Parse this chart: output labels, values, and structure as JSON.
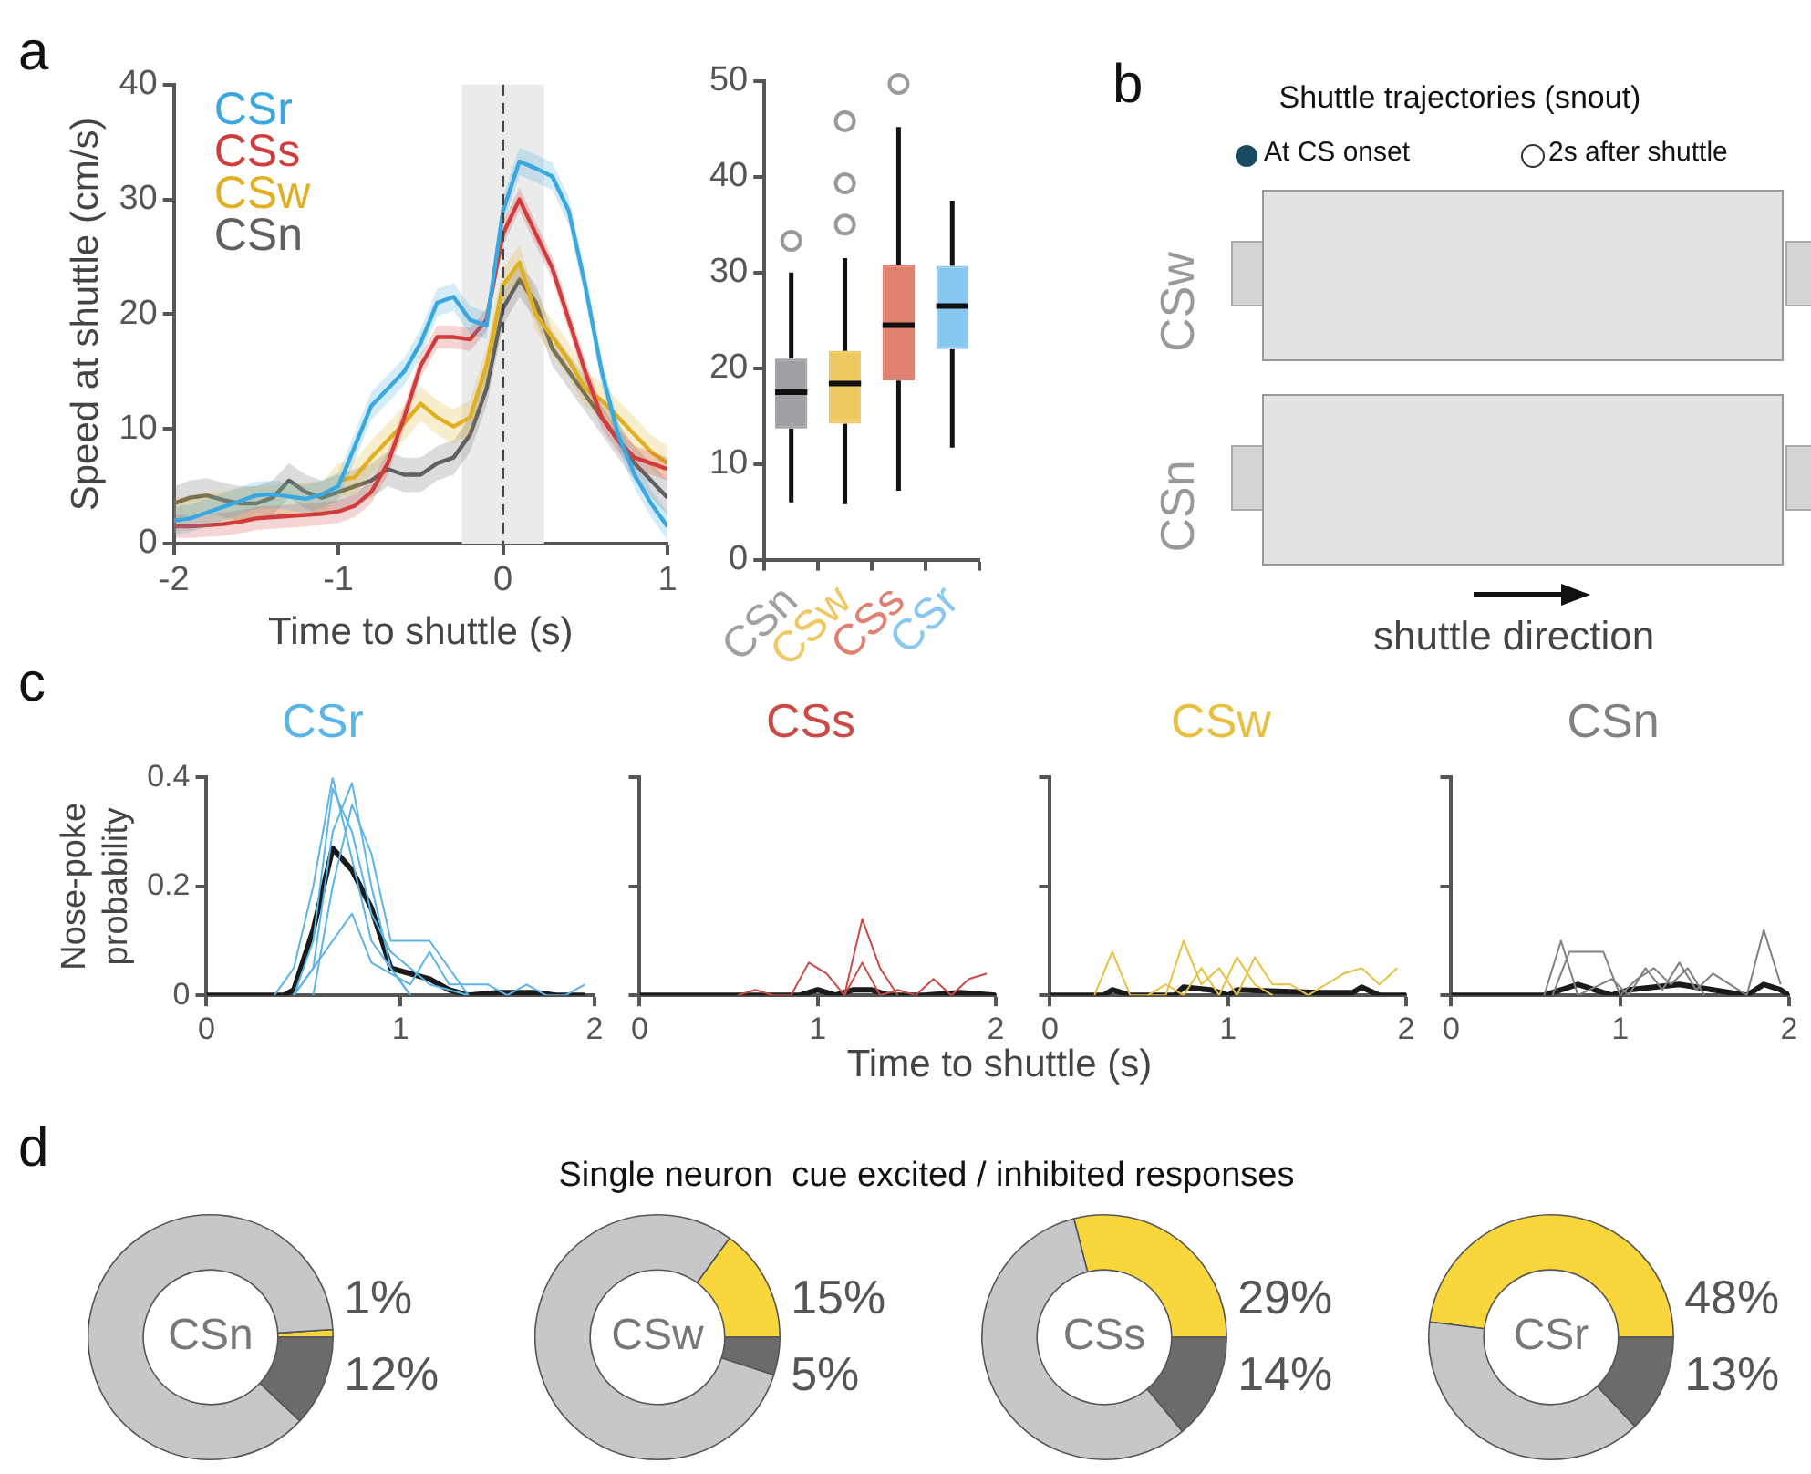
{
  "chart_data": [
    {
      "type": "line",
      "xlabel": "Time to shuttle (s)",
      "ylabel": "Speed at shuttle (cm/s)",
      "annotations": [
        "a"
      ],
      "legend": "top left",
      "x": [
        -2,
        -1.9,
        -1.8,
        -1.7,
        -1.6,
        -1.5,
        -1.4,
        -1.3,
        -1.2,
        -1.1,
        -1,
        -0.9,
        -0.8,
        -0.7,
        -0.6,
        -0.5,
        -0.4,
        -0.3,
        -0.2,
        -0.1,
        0,
        0.1,
        0.2,
        0.3,
        0.4,
        0.5,
        0.6,
        0.7,
        0.8,
        0.9,
        1
      ],
      "series": [
        {
          "name": "CSr",
          "color": "#3aa8e0",
          "values": [
            2,
            2.2,
            2.7,
            3.2,
            3.7,
            4.2,
            4.3,
            4.1,
            3.9,
            4.3,
            5,
            8.5,
            12,
            13.5,
            15,
            17.5,
            21,
            21.5,
            19.5,
            19,
            29,
            33.3,
            32.7,
            32,
            29,
            22.5,
            15,
            9.5,
            6,
            3.5,
            1.5
          ],
          "lower": [
            0.8,
            1,
            1.5,
            2,
            2.5,
            3,
            3.1,
            2.9,
            2.7,
            3.1,
            3.8,
            7.3,
            10.8,
            12.3,
            13.8,
            16.3,
            19.8,
            20.3,
            18.3,
            17.8,
            27.8,
            32.1,
            31.5,
            30.8,
            27.8,
            21.3,
            13.8,
            8.3,
            4.8,
            2.3,
            0.3
          ],
          "upper": [
            3.2,
            3.4,
            3.9,
            4.4,
            4.9,
            5.4,
            5.5,
            5.3,
            5.1,
            5.5,
            6.2,
            9.7,
            13.2,
            14.7,
            16.2,
            18.7,
            22.2,
            22.7,
            20.7,
            20.2,
            30.2,
            34.5,
            33.9,
            33.2,
            30.2,
            23.7,
            16.2,
            10.7,
            7.2,
            4.7,
            2.7
          ]
        },
        {
          "name": "CSs",
          "color": "#d23c3c",
          "values": [
            1.5,
            1.5,
            1.6,
            1.7,
            1.9,
            2.2,
            2.3,
            2.4,
            2.5,
            2.6,
            2.8,
            3.3,
            4.5,
            7,
            11,
            15.5,
            18,
            18,
            17.8,
            19.5,
            27,
            30,
            27,
            24,
            19.5,
            15,
            11,
            9,
            7.5,
            7,
            6.5
          ],
          "lower": [
            0.5,
            0.5,
            0.6,
            0.7,
            0.9,
            1.2,
            1.3,
            1.4,
            1.5,
            1.6,
            1.8,
            2.3,
            3.5,
            6,
            10,
            14.5,
            17,
            17,
            16.8,
            18.5,
            26,
            29,
            26,
            23,
            18.5,
            14,
            10,
            8,
            6.5,
            6,
            5.5
          ],
          "upper": [
            2.5,
            2.5,
            2.6,
            2.7,
            2.9,
            3.2,
            3.3,
            3.4,
            3.5,
            3.6,
            3.8,
            4.3,
            5.5,
            8,
            12,
            16.5,
            19,
            19,
            18.8,
            20.5,
            28,
            31,
            28,
            25,
            20.5,
            16,
            12,
            10,
            8.5,
            8,
            7.5
          ]
        },
        {
          "name": "CSw",
          "color": "#e0b020",
          "values": [
            null,
            null,
            null,
            null,
            null,
            null,
            null,
            null,
            null,
            null,
            5.5,
            5.8,
            7.5,
            9,
            10.5,
            12.2,
            11,
            10.2,
            11,
            15.5,
            22.5,
            24.5,
            20,
            18,
            16,
            13.5,
            12.5,
            11,
            9.5,
            8,
            7
          ],
          "lower": [
            1,
            1.2,
            1.4,
            1.6,
            1.8,
            2,
            2.1,
            2.2,
            2.3,
            2.4,
            4,
            4.3,
            6,
            7.5,
            9,
            10.7,
            9.5,
            8.7,
            9.5,
            14,
            21,
            23,
            18.5,
            16.5,
            14.5,
            12,
            11,
            9.5,
            8,
            6.5,
            5.5
          ],
          "upper": [
            4,
            4.2,
            4.4,
            4.6,
            4.8,
            5,
            5.1,
            5.2,
            5.3,
            5.4,
            7,
            7.3,
            9,
            10.5,
            12,
            13.7,
            12.5,
            11.7,
            12.5,
            17,
            24,
            26,
            21.5,
            19.5,
            17.5,
            15,
            14,
            12.5,
            11,
            9.5,
            8.5
          ]
        },
        {
          "name": "CSn",
          "color": "#606060",
          "values": [
            3.5,
            4,
            4.2,
            3.8,
            3.5,
            3.5,
            4,
            5.5,
            4.5,
            4,
            4.5,
            5,
            5.5,
            6.5,
            6,
            6,
            7,
            7.5,
            9.5,
            13.5,
            20.5,
            23,
            21,
            17,
            15,
            13,
            11,
            9,
            7,
            5.5,
            4
          ],
          "lower": [
            2,
            2.5,
            2.7,
            2.3,
            2,
            2,
            2.5,
            4,
            3,
            2.5,
            3,
            3.5,
            4,
            5,
            4.5,
            4.5,
            5.5,
            6,
            8,
            12,
            19,
            21.5,
            19.5,
            15.5,
            13.5,
            11.5,
            9.5,
            7.5,
            5.5,
            4,
            2.5
          ],
          "upper": [
            5,
            5.5,
            5.7,
            5.3,
            5,
            5,
            5.5,
            7,
            6,
            5.5,
            6,
            6.5,
            7,
            8,
            7.5,
            7.5,
            8.5,
            9,
            11,
            15,
            22,
            24.5,
            22.5,
            18.5,
            16.5,
            14.5,
            12.5,
            10.5,
            8.5,
            7,
            5.5
          ]
        }
      ],
      "xlim": [
        -2,
        1
      ],
      "xticks": [
        -2,
        -1,
        0,
        1
      ],
      "ylim": [
        0,
        40
      ],
      "yticks": [
        0,
        10,
        20,
        30,
        40
      ],
      "bands": [
        {
          "axis": "x",
          "from": -0.25,
          "to": 0.25,
          "color": "#ebebeb"
        }
      ],
      "ref_lines": [
        {
          "axis": "x",
          "value": 0,
          "color": "#444444",
          "line_style": "dashed"
        }
      ]
    },
    {
      "type": "box",
      "categories": [
        "CSn",
        "CSw",
        "CSs",
        "CSr"
      ],
      "colors": [
        "#a0a0a4",
        "#f0c860",
        "#e08070",
        "#88c8f0"
      ],
      "boxes": [
        {
          "low": 6,
          "q1": 13.7,
          "median": 17.5,
          "q3": 21,
          "high": 30,
          "outliers": [
            33.3
          ]
        },
        {
          "low": 5.8,
          "q1": 14.2,
          "median": 18.4,
          "q3": 21.8,
          "high": 31.5,
          "outliers": [
            35,
            39.3,
            45.8
          ]
        },
        {
          "low": 7.2,
          "q1": 18.7,
          "median": 24.5,
          "q3": 30.8,
          "high": 45.2,
          "outliers": [
            49.7
          ]
        },
        {
          "low": 11.7,
          "q1": 22,
          "median": 26.5,
          "q3": 30.7,
          "high": 37.5
        }
      ],
      "ylim": [
        0,
        50
      ],
      "yticks": [
        0,
        10,
        20,
        30,
        40,
        50
      ]
    },
    {
      "type": "other",
      "title": "Shuttle trajectories (snout)",
      "annotations": [
        "b",
        "At CS onset",
        "2s after shuttle",
        "CSw",
        "CSn",
        "shuttle direction"
      ]
    },
    {
      "type": "line",
      "title": "CSr",
      "ylabel": "Nose-poke probability",
      "annotations": [
        "c"
      ],
      "series": [
        {
          "color": "#5ab4e6",
          "x": [
            0.35,
            0.45,
            0.55,
            0.65,
            0.75,
            0.85,
            0.95,
            1.05
          ],
          "values": [
            0,
            0.05,
            0.2,
            0.4,
            0.25,
            0.1,
            0.05,
            0
          ]
        },
        {
          "color": "#5ab4e6",
          "x": [
            0.45,
            0.55,
            0.65,
            0.75,
            0.85,
            0.95,
            1.15,
            1.35
          ],
          "values": [
            0,
            0.1,
            0.38,
            0.3,
            0.15,
            0.08,
            0.02,
            0
          ]
        },
        {
          "color": "#5ab4e6",
          "x": [
            0.45,
            0.55,
            0.65,
            0.75,
            0.85,
            0.95,
            1.05
          ],
          "values": [
            0,
            0.05,
            0.3,
            0.39,
            0.2,
            0.05,
            0
          ]
        },
        {
          "color": "#5ab4e6",
          "x": [
            0.55,
            0.65,
            0.75,
            0.85,
            0.95,
            1.15,
            1.35
          ],
          "values": [
            0,
            0.2,
            0.35,
            0.26,
            0.1,
            0.1,
            0
          ]
        },
        {
          "color": "#5ab4e6",
          "x": [
            0.45,
            0.55,
            0.65,
            0.75,
            0.85,
            0.95,
            1.05,
            1.15,
            1.25,
            1.45,
            1.55,
            1.65,
            1.75,
            1.85,
            1.95
          ],
          "values": [
            0,
            0.05,
            0.1,
            0.15,
            0.06,
            0.04,
            0.02,
            0.08,
            0.02,
            0.02,
            0,
            0.02,
            0,
            0,
            0.02
          ]
        },
        {
          "color": "#1a1a1a",
          "x": [
            0,
            0.4,
            0.45,
            0.55,
            0.65,
            0.75,
            0.85,
            0.95,
            1.15,
            1.25,
            1.35,
            1.5,
            1.7,
            1.8,
            1.95
          ],
          "values": [
            0,
            0,
            0.01,
            0.12,
            0.27,
            0.23,
            0.16,
            0.05,
            0.03,
            0.01,
            0,
            0.005,
            0.005,
            0,
            0
          ]
        }
      ],
      "xlim": [
        0,
        2
      ],
      "xticks": [
        0,
        1,
        2
      ],
      "ylim": [
        0,
        0.4
      ],
      "yticks": [
        0,
        0.2,
        0.4
      ]
    },
    {
      "type": "line",
      "title": "CSs",
      "xlabel": "Time to shuttle (s)",
      "tick_labels": "x",
      "series": [
        {
          "color": "#cc4a44",
          "x": [
            0.55,
            0.65,
            0.75,
            0.85,
            0.95,
            1.05,
            1.15,
            1.25,
            1.35,
            1.45
          ],
          "values": [
            0,
            0.01,
            0,
            0,
            0.06,
            0.04,
            0,
            0.14,
            0.05,
            0
          ]
        },
        {
          "color": "#cc4a44",
          "x": [
            1.15,
            1.25,
            1.35,
            1.45,
            1.55,
            1.65,
            1.75,
            1.85,
            1.95
          ],
          "values": [
            0,
            0.06,
            0,
            0.01,
            0,
            0.03,
            0,
            0.03,
            0.04
          ]
        },
        {
          "color": "#1a1a1a",
          "x": [
            0,
            0.9,
            1,
            1.1,
            1.2,
            1.3,
            1.4,
            1.6,
            1.8,
            2
          ],
          "values": [
            0,
            0,
            0.01,
            0,
            0.01,
            0.01,
            0,
            0,
            0.005,
            0
          ]
        }
      ],
      "xlim": [
        0,
        2
      ],
      "xticks": [
        0,
        1,
        2
      ],
      "ylim": [
        0,
        0.4
      ],
      "yticks": [
        0,
        0.2,
        0.4
      ]
    },
    {
      "type": "line",
      "title": "CSw",
      "tick_labels": "x",
      "series": [
        {
          "color": "#e8c040",
          "x": [
            0.25,
            0.35,
            0.45,
            0.65,
            0.75,
            0.85,
            0.95,
            1.05,
            1.15,
            1.25,
            1.35,
            1.45,
            1.55,
            1.65,
            1.75,
            1.85,
            1.95
          ],
          "values": [
            0,
            0.08,
            0,
            0,
            0.1,
            0.02,
            0.05,
            0,
            0.07,
            0.02,
            0.02,
            0,
            0.02,
            0.04,
            0.05,
            0.02,
            0.05
          ]
        },
        {
          "color": "#e8c040",
          "x": [
            0.55,
            0.65,
            0.75,
            0.85,
            0.95,
            1.05,
            1.15,
            1.25
          ],
          "values": [
            0,
            0.02,
            0,
            0.05,
            0,
            0.07,
            0.02,
            0
          ]
        },
        {
          "color": "#1a1a1a",
          "x": [
            0,
            0.3,
            0.35,
            0.45,
            0.7,
            0.75,
            0.9,
            1,
            1.05,
            1.5,
            1.7,
            1.75,
            1.85,
            2
          ],
          "values": [
            0,
            0,
            0.01,
            0,
            0,
            0.015,
            0.01,
            0,
            0.01,
            0.005,
            0.005,
            0.015,
            0,
            0
          ]
        }
      ],
      "xlim": [
        0,
        2
      ],
      "xticks": [
        0,
        1,
        2
      ],
      "ylim": [
        0,
        0.4
      ],
      "yticks": [
        0,
        0.2,
        0.4
      ]
    },
    {
      "type": "line",
      "title": "CSn",
      "tick_labels": "x",
      "series": [
        {
          "color": "#808080",
          "x": [
            0.55,
            0.65,
            0.75,
            0.95,
            1.05,
            1.15,
            1.25,
            1.35,
            1.45,
            1.55,
            1.75,
            1.85,
            1.95
          ],
          "values": [
            0,
            0.1,
            0,
            0.03,
            0,
            0.05,
            0.01,
            0.06,
            0.01,
            0.04,
            0,
            0.12,
            0.02
          ]
        },
        {
          "color": "#808080",
          "x": [
            0.6,
            0.7,
            0.8,
            0.9,
            1,
            1.1,
            1.2,
            1.3,
            1.4,
            1.5
          ],
          "values": [
            0,
            0.08,
            0.08,
            0.08,
            0,
            0.03,
            0.05,
            0.02,
            0.05,
            0
          ]
        },
        {
          "color": "#1a1a1a",
          "x": [
            0,
            0.55,
            0.75,
            0.95,
            1.05,
            1.35,
            1.75,
            1.85,
            1.95,
            2
          ],
          "values": [
            0,
            0,
            0.02,
            0,
            0.01,
            0.02,
            0,
            0.02,
            0.01,
            0
          ]
        }
      ],
      "xlim": [
        0,
        2
      ],
      "xticks": [
        0,
        1,
        2
      ],
      "ylim": [
        0,
        0.4
      ],
      "yticks": [
        0,
        0.2,
        0.4
      ]
    },
    {
      "type": "donut",
      "title": "CSn",
      "annotations": [
        "d",
        "Single neuron  cue excited / inhibited responses"
      ],
      "categories": [
        null,
        null,
        null
      ],
      "values": [
        1,
        12,
        87
      ],
      "value_labels": [
        "1%",
        "12%",
        null
      ],
      "colors": [
        "#f8d63c",
        "#6b6b6b",
        "#c7c7c9"
      ]
    },
    {
      "type": "donut",
      "title": "CSw",
      "categories": [
        null,
        null,
        null
      ],
      "values": [
        15,
        5,
        80
      ],
      "value_labels": [
        "15%",
        "5%",
        null
      ],
      "colors": [
        "#f8d63c",
        "#6b6b6b",
        "#c7c7c9"
      ]
    },
    {
      "type": "donut",
      "title": "CSs",
      "categories": [
        null,
        null,
        null
      ],
      "values": [
        29,
        14,
        57
      ],
      "value_labels": [
        "29%",
        "14%",
        null
      ],
      "colors": [
        "#f8d63c",
        "#6b6b6b",
        "#c7c7c9"
      ]
    },
    {
      "type": "donut",
      "title": "CSr",
      "categories": [
        null,
        null,
        null
      ],
      "values": [
        48,
        13,
        39
      ],
      "value_labels": [
        "48%",
        "13%",
        null
      ],
      "colors": [
        "#f8d63c",
        "#6b6b6b",
        "#c7c7c9"
      ]
    }
  ]
}
